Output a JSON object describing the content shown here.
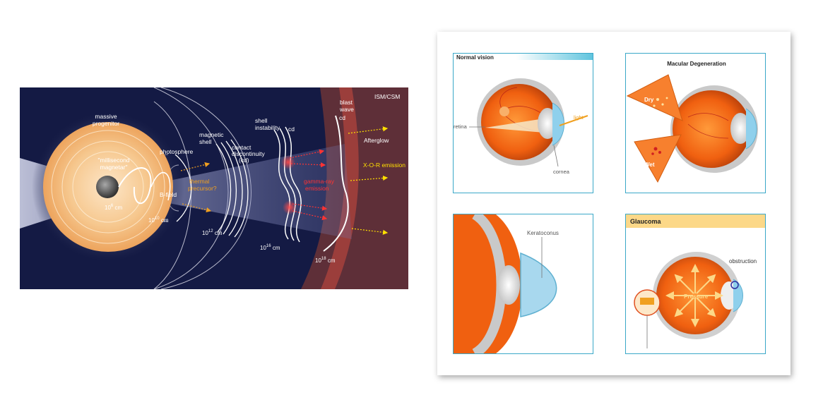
{
  "magnetar": {
    "labels": {
      "massive_progenitor": [
        "massive",
        "progenitor"
      ],
      "millisecond_magnetar": [
        "\"millisecond",
        "magnetar\""
      ],
      "photosphere": "photosphere",
      "b_field": "B-field",
      "magnetic_shell": [
        "magnetic",
        "shell"
      ],
      "thermal_precursor": [
        "thermal",
        "precursor?"
      ],
      "contact_discontinuity": [
        "contact",
        "discontinuity",
        "(cd)"
      ],
      "shell_instability": [
        "shell",
        "instability"
      ],
      "cd": "cd",
      "cd2": "cd",
      "gamma_ray_emission": [
        "gamma-ray",
        "emission"
      ],
      "blast_wave": [
        "blast",
        "wave"
      ],
      "ism_csm": "ISM/CSM",
      "afterglow": "Afterglow",
      "xor_emission": "X-O-R emission",
      "scale_1": {
        "base": "10",
        "exp": "6",
        "unit": " cm"
      },
      "scale_2": {
        "base": "10",
        "exp": "10",
        "unit": " cm"
      },
      "scale_3": {
        "base": "10",
        "exp": "12",
        "unit": " cm"
      },
      "scale_4": {
        "base": "10",
        "exp": "16",
        "unit": " cm"
      },
      "scale_5": {
        "base": "10",
        "exp": "18",
        "unit": " cm"
      }
    },
    "colors": {
      "background": "#141a44",
      "medium": "#5e2f38",
      "progenitor_outer": "#f2b872",
      "emission_red": "#ff3333",
      "emission_yellow": "#ffe000",
      "thermal_orange": "#f0a020"
    }
  },
  "eye_conditions": {
    "normal_vision": {
      "title": "Normal vision",
      "retina": "retina",
      "light": "light",
      "cornea": "cornea"
    },
    "macular_degeneration": {
      "title": "Macular Degeneration",
      "dry": "Dry",
      "wet": "Wet"
    },
    "keratoconus": {
      "title": "Keratoconus"
    },
    "glaucoma": {
      "title": "Glaucoma",
      "obstruction": "obstruction",
      "pressure": "Pressure"
    },
    "colors": {
      "border": "#3aa8c8",
      "glaucoma_header": "#fcd888",
      "eye_orange": "#f06010"
    }
  }
}
